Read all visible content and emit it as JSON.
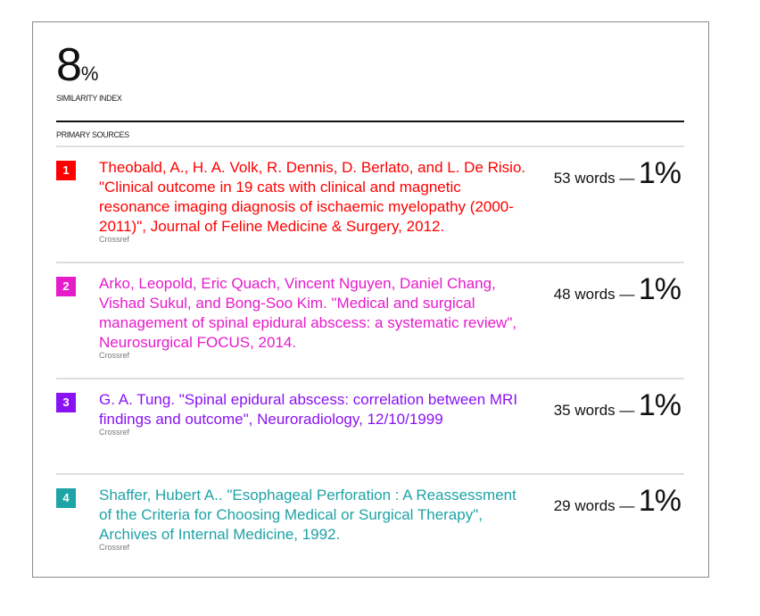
{
  "summary": {
    "similarity_value": "8",
    "similarity_unit": "%",
    "similarity_label": "SIMILARITY INDEX",
    "section_label": "PRIMARY SOURCES"
  },
  "sources": [
    {
      "num": "1",
      "color": "#ff0000",
      "citation": "Theobald, A., H. A. Volk, R. Dennis, D. Berlato, and L. De Risio. \"Clinical outcome in 19 cats with clinical and magnetic resonance imaging diagnosis of ischaemic myelopathy (2000-2011)\", Journal of Feline Medicine & Surgery, 2012.",
      "source": "Crossref",
      "words": "53 words —",
      "percent": "1%"
    },
    {
      "num": "2",
      "color": "#e61ccb",
      "citation": "Arko, Leopold, Eric Quach, Vincent Nguyen, Daniel Chang, Vishad Sukul, and Bong-Soo Kim. \"Medical and surgical management of spinal epidural abscess: a systematic review\", Neurosurgical FOCUS, 2014.",
      "source": "Crossref",
      "words": "48 words —",
      "percent": "1%"
    },
    {
      "num": "3",
      "color": "#8a12f2",
      "citation": "G. A. Tung. \"Spinal epidural abscess: correlation between MRI findings and outcome\", Neuroradiology, 12/10/1999",
      "source": "Crossref",
      "words": "35 words —",
      "percent": "1%"
    },
    {
      "num": "4",
      "color": "#1ea3a6",
      "citation": "Shaffer, Hubert A.. \"Esophageal Perforation : A Reassessment of the Criteria for Choosing Medical or Surgical Therapy\", Archives of Internal Medicine, 1992.",
      "source": "Crossref",
      "words": "29 words —",
      "percent": "1%"
    }
  ]
}
